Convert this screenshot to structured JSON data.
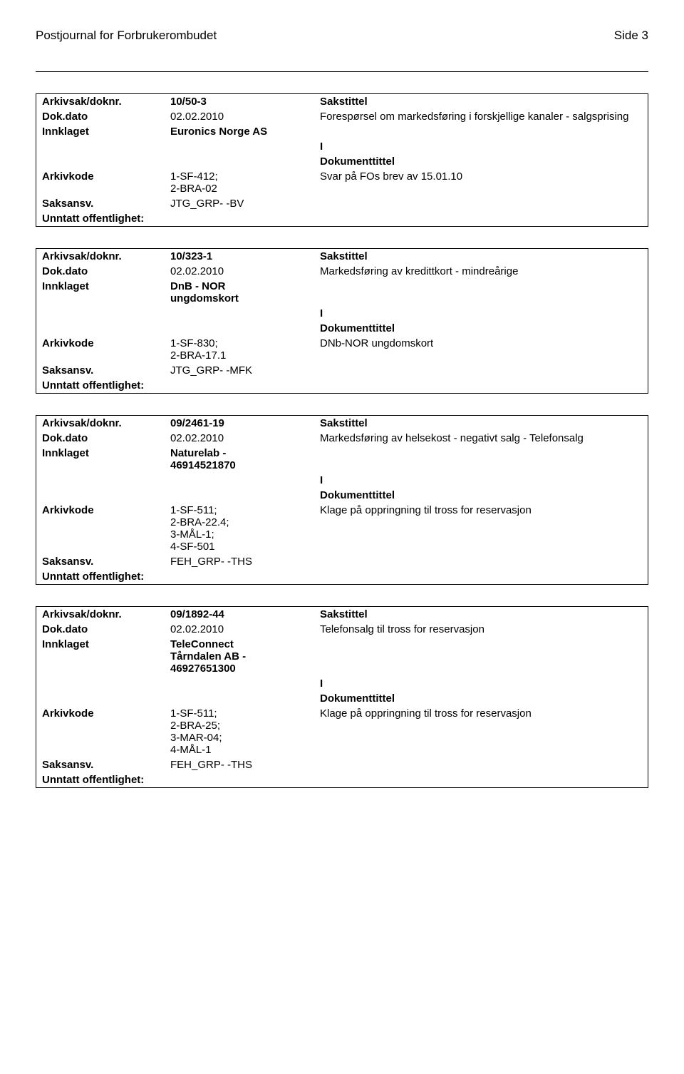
{
  "header": {
    "journal_title": "Postjournal for Forbrukerombudet",
    "page_label": "Side 3"
  },
  "labels": {
    "arkivsak": "Arkivsak/doknr.",
    "dokdato": "Dok.dato",
    "innklaget": "Innklaget",
    "arkivkode": "Arkivkode",
    "saksansv": "Saksansv.",
    "unntatt": "Unntatt offentlighet:",
    "sakstittel": "Sakstittel",
    "dokumenttittel": "Dokumenttittel"
  },
  "records": [
    {
      "arkivsak": "10/50-3",
      "dokdato": "02.02.2010",
      "sakstittel_text": "Forespørsel om markedsføring i forskjellige kanaler - salgsprising",
      "innklaget": "Euronics Norge AS",
      "io": "I",
      "arkivkode": "1-SF-412;\n2-BRA-02",
      "dokumenttittel_text": "Svar på FOs brev av 15.01.10",
      "saksansv": "JTG_GRP- -BV",
      "unntatt": ""
    },
    {
      "arkivsak": "10/323-1",
      "dokdato": "02.02.2010",
      "sakstittel_text": "Markedsføring av kredittkort - mindreårige",
      "innklaget": "DnB - NOR\nungdomskort",
      "io": "I",
      "arkivkode": "1-SF-830;\n2-BRA-17.1",
      "dokumenttittel_text": "DNb-NOR ungdomskort",
      "saksansv": "JTG_GRP- -MFK",
      "unntatt": ""
    },
    {
      "arkivsak": "09/2461-19",
      "dokdato": "02.02.2010",
      "sakstittel_text": "Markedsføring av helsekost - negativt salg - Telefonsalg",
      "innklaget": "Naturelab -\n46914521870",
      "io": "I",
      "arkivkode": "1-SF-511;\n2-BRA-22.4;\n3-MÅL-1;\n4-SF-501",
      "dokumenttittel_text": "Klage på oppringning til tross for reservasjon",
      "saksansv": "FEH_GRP- -THS",
      "unntatt": ""
    },
    {
      "arkivsak": "09/1892-44",
      "dokdato": "02.02.2010",
      "sakstittel_text": "Telefonsalg til tross for reservasjon",
      "innklaget": "TeleConnect\nTårndalen AB -\n46927651300",
      "io": "I",
      "arkivkode": "1-SF-511;\n2-BRA-25;\n3-MAR-04;\n4-MÅL-1",
      "dokumenttittel_text": "Klage på oppringning til tross for reservasjon",
      "saksansv": "FEH_GRP- -THS",
      "unntatt": ""
    }
  ]
}
